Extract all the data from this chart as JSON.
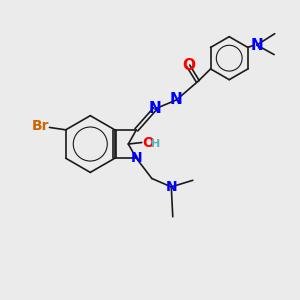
{
  "background_color": "#ebebeb",
  "bond_color": "#1a1a1a",
  "atoms": {
    "Br": {
      "color": "#cc6600",
      "fontsize": 10
    },
    "N": {
      "color": "#0000ff",
      "fontsize": 10
    },
    "O": {
      "color": "#ff0000",
      "fontsize": 10
    },
    "H": {
      "color": "#5ab4b4",
      "fontsize": 8
    },
    "C": {
      "color": "#1a1a1a",
      "fontsize": 9
    }
  },
  "figsize": [
    3.0,
    3.0
  ],
  "dpi": 100
}
